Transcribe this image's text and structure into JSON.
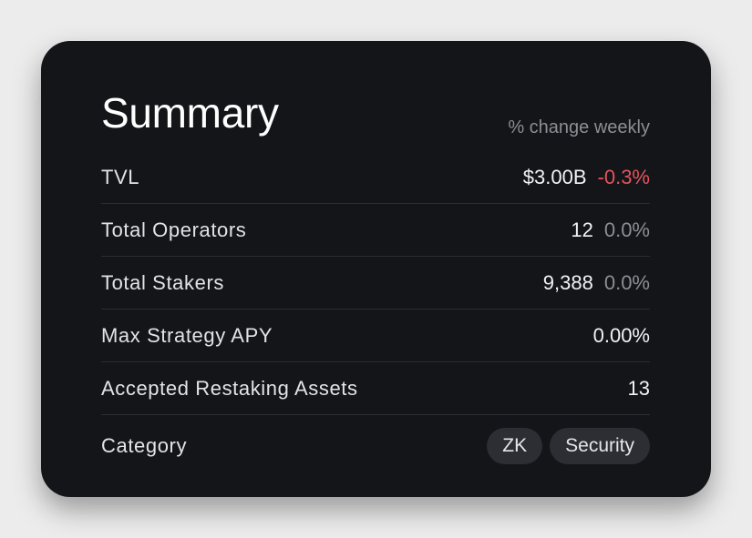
{
  "summary": {
    "title": "Summary",
    "subtitle": "% change weekly",
    "rows": [
      {
        "label": "TVL",
        "value": "$3.00B",
        "change": "-0.3%"
      },
      {
        "label": "Total Operators",
        "value": "12",
        "change": "0.0%"
      },
      {
        "label": "Total Stakers",
        "value": "9,388",
        "change": "0.0%"
      },
      {
        "label": "Max Strategy APY",
        "value": "0.00%"
      },
      {
        "label": "Accepted Restaking Assets",
        "value": "13"
      }
    ],
    "category": {
      "label": "Category",
      "tags": [
        "ZK",
        "Security"
      ]
    }
  },
  "colors": {
    "card_bg": "#141519",
    "negative": "#e5535b",
    "muted": "#8d8e93"
  }
}
